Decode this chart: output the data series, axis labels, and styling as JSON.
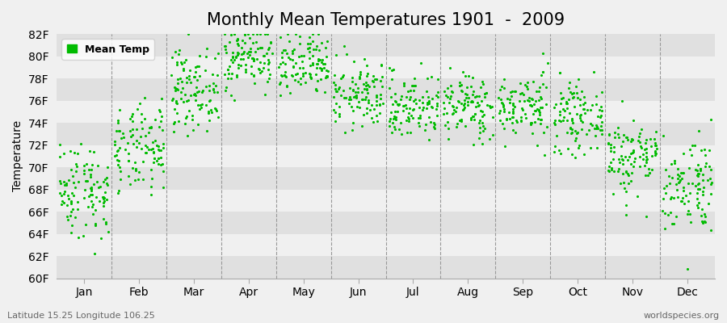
{
  "title": "Monthly Mean Temperatures 1901  -  2009",
  "ylabel": "Temperature",
  "xlabel_months": [
    "Jan",
    "Feb",
    "Mar",
    "Apr",
    "May",
    "Jun",
    "Jul",
    "Aug",
    "Sep",
    "Oct",
    "Nov",
    "Dec"
  ],
  "ytick_labels": [
    "60F",
    "62F",
    "64F",
    "66F",
    "68F",
    "70F",
    "72F",
    "74F",
    "76F",
    "78F",
    "80F",
    "82F"
  ],
  "ytick_values": [
    60,
    62,
    64,
    66,
    68,
    70,
    72,
    74,
    76,
    78,
    80,
    82
  ],
  "ylim": [
    60,
    82
  ],
  "dot_color": "#00bb00",
  "dot_size": 5,
  "legend_label": "Mean Temp",
  "background_color": "#f0f0f0",
  "plot_bg_color": "#f0f0f0",
  "band_color_light": "#f0f0f0",
  "band_color_dark": "#e0e0e0",
  "subtitle": "Latitude 15.25 Longitude 106.25",
  "watermark": "worldspecies.org",
  "title_fontsize": 15,
  "axis_fontsize": 10,
  "tick_fontsize": 10,
  "monthly_means": [
    68.0,
    71.5,
    77.0,
    80.0,
    79.0,
    76.5,
    75.5,
    75.5,
    75.5,
    74.5,
    71.0,
    68.5
  ],
  "monthly_stds": [
    2.2,
    2.0,
    1.8,
    1.5,
    1.5,
    1.5,
    1.5,
    1.5,
    1.5,
    1.5,
    1.8,
    2.2
  ],
  "years": 109,
  "seed": 42
}
